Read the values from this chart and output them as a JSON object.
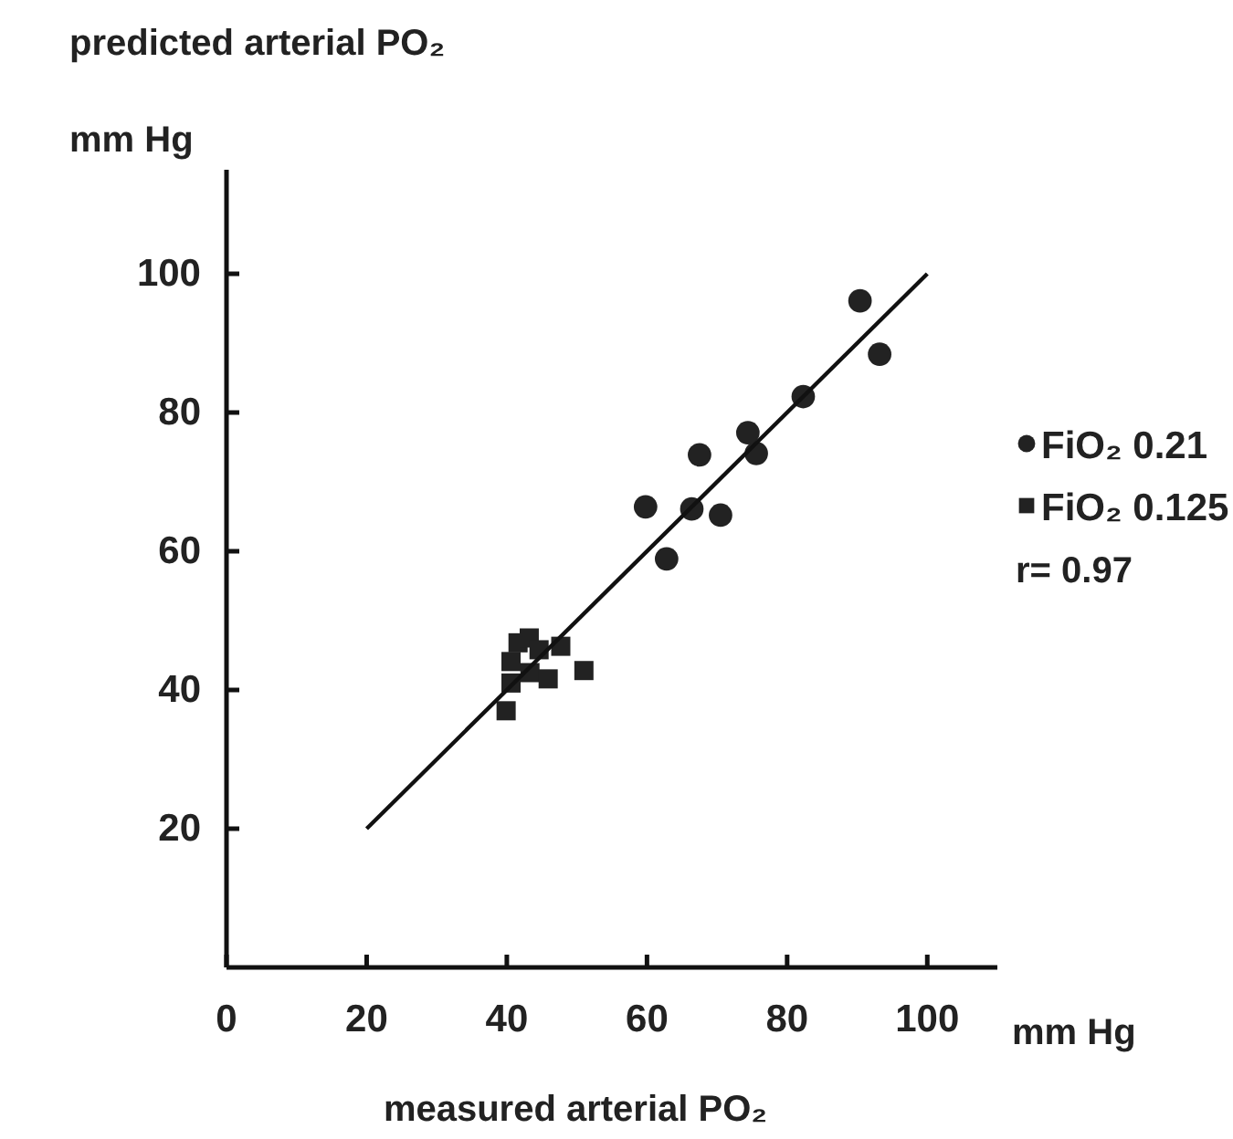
{
  "chart_data": {
    "type": "scatter",
    "xlabel": "measured arterial PO₂",
    "ylabel": "predicted arterial PO₂",
    "annotations": [
      "mm Hg",
      "mm Hg",
      "r= 0.97"
    ],
    "xlim": [
      0,
      110
    ],
    "ylim": [
      0,
      115
    ],
    "xticks": [
      0,
      20,
      40,
      60,
      80,
      100
    ],
    "yticks": [
      20,
      40,
      60,
      80,
      100
    ],
    "grid": false,
    "legend": "right",
    "series": [
      {
        "name": "FiO₂ 0.21",
        "color": "#222222",
        "marker": "circle",
        "x": [
          90.4,
          93.2,
          82.3,
          74.4,
          75.6,
          67.5,
          59.8,
          66.4,
          70.5,
          62.8
        ],
        "values": [
          96.1,
          88.4,
          82.3,
          77.1,
          74.1,
          73.9,
          66.4,
          66.1,
          65.2,
          58.9
        ]
      },
      {
        "name": "FiO₂ 0.125",
        "color": "#222222",
        "marker": "square",
        "x": [
          39.9,
          40.6,
          40.6,
          41.6,
          43.2,
          44.6,
          43.3,
          45.9,
          47.7,
          51.0
        ],
        "values": [
          37.0,
          41.0,
          44.1,
          46.8,
          47.5,
          45.8,
          42.5,
          41.6,
          46.3,
          42.8
        ]
      },
      {
        "type": "line",
        "color": "#111111",
        "marker": "none",
        "line_style": "solid",
        "x": [
          20,
          100
        ],
        "values": [
          20,
          100
        ]
      }
    ]
  }
}
